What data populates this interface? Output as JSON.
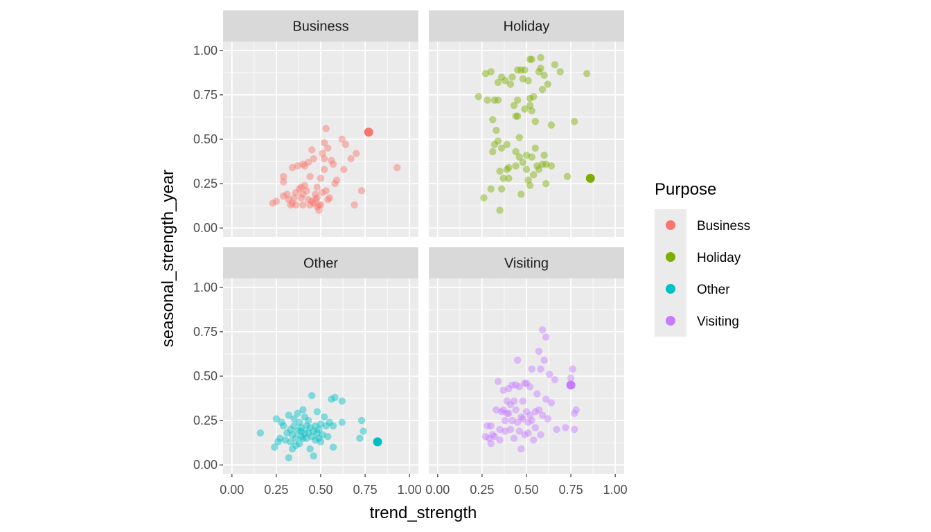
{
  "chart_data": {
    "type": "scatter",
    "layout": "facet_wrap 2x2",
    "xlabel": "trend_strength",
    "ylabel": "seasonal_strength_year",
    "xlim": [
      0,
      1
    ],
    "ylim": [
      0,
      1
    ],
    "x_ticks": [
      "0.00",
      "0.25",
      "0.50",
      "0.75",
      "1.00"
    ],
    "y_ticks": [
      "0.00",
      "0.25",
      "0.50",
      "0.75",
      "1.00"
    ],
    "grid": true,
    "legend": {
      "title": "Purpose",
      "position": "right",
      "entries": [
        "Business",
        "Holiday",
        "Other",
        "Visiting"
      ]
    },
    "facets": [
      {
        "name": "Business",
        "color": "#F8766D",
        "highlight": [
          0.77,
          0.54
        ],
        "points": [
          [
            0.23,
            0.14
          ],
          [
            0.25,
            0.15
          ],
          [
            0.29,
            0.29
          ],
          [
            0.29,
            0.18
          ],
          [
            0.29,
            0.26
          ],
          [
            0.31,
            0.19
          ],
          [
            0.32,
            0.16
          ],
          [
            0.33,
            0.13
          ],
          [
            0.34,
            0.14
          ],
          [
            0.34,
            0.34
          ],
          [
            0.35,
            0.17
          ],
          [
            0.36,
            0.2
          ],
          [
            0.36,
            0.13
          ],
          [
            0.37,
            0.35
          ],
          [
            0.38,
            0.22
          ],
          [
            0.39,
            0.23
          ],
          [
            0.39,
            0.17
          ],
          [
            0.4,
            0.36
          ],
          [
            0.4,
            0.19
          ],
          [
            0.4,
            0.13
          ],
          [
            0.41,
            0.35
          ],
          [
            0.41,
            0.24
          ],
          [
            0.42,
            0.21
          ],
          [
            0.43,
            0.37
          ],
          [
            0.43,
            0.16
          ],
          [
            0.44,
            0.13
          ],
          [
            0.44,
            0.29
          ],
          [
            0.45,
            0.44
          ],
          [
            0.45,
            0.15
          ],
          [
            0.46,
            0.39
          ],
          [
            0.46,
            0.14
          ],
          [
            0.47,
            0.19
          ],
          [
            0.47,
            0.16
          ],
          [
            0.48,
            0.17
          ],
          [
            0.48,
            0.12
          ],
          [
            0.48,
            0.23
          ],
          [
            0.49,
            0.13
          ],
          [
            0.49,
            0.1
          ],
          [
            0.5,
            0.28
          ],
          [
            0.5,
            0.13
          ],
          [
            0.51,
            0.2
          ],
          [
            0.51,
            0.42
          ],
          [
            0.52,
            0.48
          ],
          [
            0.52,
            0.33
          ],
          [
            0.52,
            0.39
          ],
          [
            0.53,
            0.21
          ],
          [
            0.53,
            0.56
          ],
          [
            0.54,
            0.16
          ],
          [
            0.54,
            0.45
          ],
          [
            0.55,
            0.17
          ],
          [
            0.56,
            0.38
          ],
          [
            0.57,
            0.36
          ],
          [
            0.58,
            0.25
          ],
          [
            0.59,
            0.27
          ],
          [
            0.62,
            0.5
          ],
          [
            0.63,
            0.33
          ],
          [
            0.64,
            0.47
          ],
          [
            0.67,
            0.39
          ],
          [
            0.69,
            0.13
          ],
          [
            0.7,
            0.42
          ],
          [
            0.73,
            0.21
          ],
          [
            0.93,
            0.34
          ]
        ]
      },
      {
        "name": "Holiday",
        "color": "#7CAE00",
        "highlight": [
          0.86,
          0.28
        ],
        "points": [
          [
            0.23,
            0.74
          ],
          [
            0.26,
            0.17
          ],
          [
            0.27,
            0.87
          ],
          [
            0.28,
            0.72
          ],
          [
            0.3,
            0.88
          ],
          [
            0.3,
            0.22
          ],
          [
            0.31,
            0.61
          ],
          [
            0.31,
            0.43
          ],
          [
            0.32,
            0.72
          ],
          [
            0.32,
            0.47
          ],
          [
            0.33,
            0.55
          ],
          [
            0.34,
            0.82
          ],
          [
            0.34,
            0.72
          ],
          [
            0.34,
            0.49
          ],
          [
            0.35,
            0.32
          ],
          [
            0.35,
            0.1
          ],
          [
            0.36,
            0.85
          ],
          [
            0.36,
            0.22
          ],
          [
            0.36,
            0.45
          ],
          [
            0.37,
            0.28
          ],
          [
            0.38,
            0.83
          ],
          [
            0.39,
            0.33
          ],
          [
            0.39,
            0.47
          ],
          [
            0.4,
            0.34
          ],
          [
            0.4,
            0.28
          ],
          [
            0.41,
            0.81
          ],
          [
            0.42,
            0.85
          ],
          [
            0.43,
            0.69
          ],
          [
            0.44,
            0.43
          ],
          [
            0.44,
            0.35
          ],
          [
            0.44,
            0.63
          ],
          [
            0.45,
            0.89
          ],
          [
            0.45,
            0.72
          ],
          [
            0.45,
            0.63
          ],
          [
            0.46,
            0.4
          ],
          [
            0.46,
            0.51
          ],
          [
            0.47,
            0.89
          ],
          [
            0.47,
            0.19
          ],
          [
            0.48,
            0.37
          ],
          [
            0.48,
            0.84
          ],
          [
            0.49,
            0.89
          ],
          [
            0.49,
            0.67
          ],
          [
            0.5,
            0.41
          ],
          [
            0.5,
            0.33
          ],
          [
            0.51,
            0.27
          ],
          [
            0.51,
            0.83
          ],
          [
            0.52,
            0.95
          ],
          [
            0.52,
            0.73
          ],
          [
            0.52,
            0.69
          ],
          [
            0.52,
            0.24
          ],
          [
            0.53,
            0.66
          ],
          [
            0.53,
            0.95
          ],
          [
            0.53,
            0.4
          ],
          [
            0.54,
            0.3
          ],
          [
            0.54,
            0.74
          ],
          [
            0.55,
            0.45
          ],
          [
            0.55,
            0.6
          ],
          [
            0.56,
            0.35
          ],
          [
            0.57,
            0.88
          ],
          [
            0.57,
            0.33
          ],
          [
            0.58,
            0.96
          ],
          [
            0.58,
            0.9
          ],
          [
            0.59,
            0.36
          ],
          [
            0.59,
            0.78
          ],
          [
            0.6,
            0.41
          ],
          [
            0.6,
            0.86
          ],
          [
            0.61,
            0.25
          ],
          [
            0.61,
            0.36
          ],
          [
            0.62,
            0.81
          ],
          [
            0.64,
            0.58
          ],
          [
            0.64,
            0.35
          ],
          [
            0.66,
            0.92
          ],
          [
            0.69,
            0.88
          ],
          [
            0.73,
            0.29
          ],
          [
            0.77,
            0.6
          ],
          [
            0.84,
            0.87
          ]
        ]
      },
      {
        "name": "Other",
        "color": "#00BFC4",
        "highlight": [
          0.82,
          0.13
        ],
        "points": [
          [
            0.16,
            0.18
          ],
          [
            0.24,
            0.1
          ],
          [
            0.25,
            0.26
          ],
          [
            0.26,
            0.13
          ],
          [
            0.27,
            0.15
          ],
          [
            0.28,
            0.24
          ],
          [
            0.29,
            0.22
          ],
          [
            0.3,
            0.14
          ],
          [
            0.31,
            0.18
          ],
          [
            0.32,
            0.04
          ],
          [
            0.32,
            0.28
          ],
          [
            0.33,
            0.13
          ],
          [
            0.33,
            0.2
          ],
          [
            0.34,
            0.09
          ],
          [
            0.34,
            0.17
          ],
          [
            0.35,
            0.26
          ],
          [
            0.35,
            0.22
          ],
          [
            0.36,
            0.11
          ],
          [
            0.36,
            0.15
          ],
          [
            0.37,
            0.19
          ],
          [
            0.37,
            0.29
          ],
          [
            0.38,
            0.24
          ],
          [
            0.38,
            0.12
          ],
          [
            0.39,
            0.16
          ],
          [
            0.39,
            0.21
          ],
          [
            0.39,
            0.19
          ],
          [
            0.4,
            0.31
          ],
          [
            0.4,
            0.15
          ],
          [
            0.41,
            0.18
          ],
          [
            0.41,
            0.27
          ],
          [
            0.42,
            0.22
          ],
          [
            0.42,
            0.15
          ],
          [
            0.43,
            0.18
          ],
          [
            0.43,
            0.25
          ],
          [
            0.44,
            0.09
          ],
          [
            0.44,
            0.21
          ],
          [
            0.45,
            0.39
          ],
          [
            0.45,
            0.16
          ],
          [
            0.46,
            0.05
          ],
          [
            0.46,
            0.19
          ],
          [
            0.47,
            0.14
          ],
          [
            0.47,
            0.22
          ],
          [
            0.48,
            0.18
          ],
          [
            0.48,
            0.3
          ],
          [
            0.49,
            0.15
          ],
          [
            0.49,
            0.2
          ],
          [
            0.5,
            0.23
          ],
          [
            0.5,
            0.13
          ],
          [
            0.51,
            0.17
          ],
          [
            0.52,
            0.27
          ],
          [
            0.53,
            0.22
          ],
          [
            0.54,
            0.16
          ],
          [
            0.55,
            0.24
          ],
          [
            0.56,
            0.37
          ],
          [
            0.57,
            0.1
          ],
          [
            0.57,
            0.22
          ],
          [
            0.58,
            0.38
          ],
          [
            0.62,
            0.24
          ],
          [
            0.62,
            0.36
          ],
          [
            0.72,
            0.15
          ],
          [
            0.73,
            0.25
          ],
          [
            0.74,
            0.19
          ]
        ]
      },
      {
        "name": "Visiting",
        "color": "#C77CFF",
        "highlight": [
          0.75,
          0.45
        ],
        "points": [
          [
            0.27,
            0.16
          ],
          [
            0.28,
            0.22
          ],
          [
            0.29,
            0.15
          ],
          [
            0.3,
            0.22
          ],
          [
            0.3,
            0.12
          ],
          [
            0.31,
            0.17
          ],
          [
            0.32,
            0.16
          ],
          [
            0.33,
            0.31
          ],
          [
            0.34,
            0.47
          ],
          [
            0.35,
            0.2
          ],
          [
            0.35,
            0.14
          ],
          [
            0.36,
            0.3
          ],
          [
            0.37,
            0.31
          ],
          [
            0.37,
            0.42
          ],
          [
            0.38,
            0.25
          ],
          [
            0.38,
            0.19
          ],
          [
            0.39,
            0.29
          ],
          [
            0.39,
            0.36
          ],
          [
            0.4,
            0.29
          ],
          [
            0.4,
            0.43
          ],
          [
            0.41,
            0.34
          ],
          [
            0.41,
            0.2
          ],
          [
            0.42,
            0.25
          ],
          [
            0.42,
            0.45
          ],
          [
            0.43,
            0.36
          ],
          [
            0.43,
            0.15
          ],
          [
            0.44,
            0.31
          ],
          [
            0.44,
            0.45
          ],
          [
            0.45,
            0.24
          ],
          [
            0.45,
            0.59
          ],
          [
            0.46,
            0.44
          ],
          [
            0.46,
            0.19
          ],
          [
            0.47,
            0.27
          ],
          [
            0.47,
            0.09
          ],
          [
            0.48,
            0.36
          ],
          [
            0.48,
            0.26
          ],
          [
            0.49,
            0.46
          ],
          [
            0.49,
            0.17
          ],
          [
            0.5,
            0.46
          ],
          [
            0.5,
            0.3
          ],
          [
            0.51,
            0.24
          ],
          [
            0.51,
            0.18
          ],
          [
            0.52,
            0.44
          ],
          [
            0.52,
            0.28
          ],
          [
            0.53,
            0.54
          ],
          [
            0.53,
            0.25
          ],
          [
            0.54,
            0.14
          ],
          [
            0.55,
            0.3
          ],
          [
            0.55,
            0.21
          ],
          [
            0.56,
            0.4
          ],
          [
            0.57,
            0.64
          ],
          [
            0.57,
            0.31
          ],
          [
            0.58,
            0.54
          ],
          [
            0.58,
            0.17
          ],
          [
            0.59,
            0.28
          ],
          [
            0.59,
            0.76
          ],
          [
            0.6,
            0.59
          ],
          [
            0.61,
            0.72
          ],
          [
            0.61,
            0.37
          ],
          [
            0.62,
            0.26
          ],
          [
            0.63,
            0.51
          ],
          [
            0.64,
            0.35
          ],
          [
            0.66,
            0.48
          ],
          [
            0.67,
            0.2
          ],
          [
            0.72,
            0.21
          ],
          [
            0.75,
            0.49
          ],
          [
            0.76,
            0.54
          ],
          [
            0.77,
            0.2
          ],
          [
            0.77,
            0.29
          ],
          [
            0.78,
            0.31
          ]
        ]
      }
    ]
  }
}
